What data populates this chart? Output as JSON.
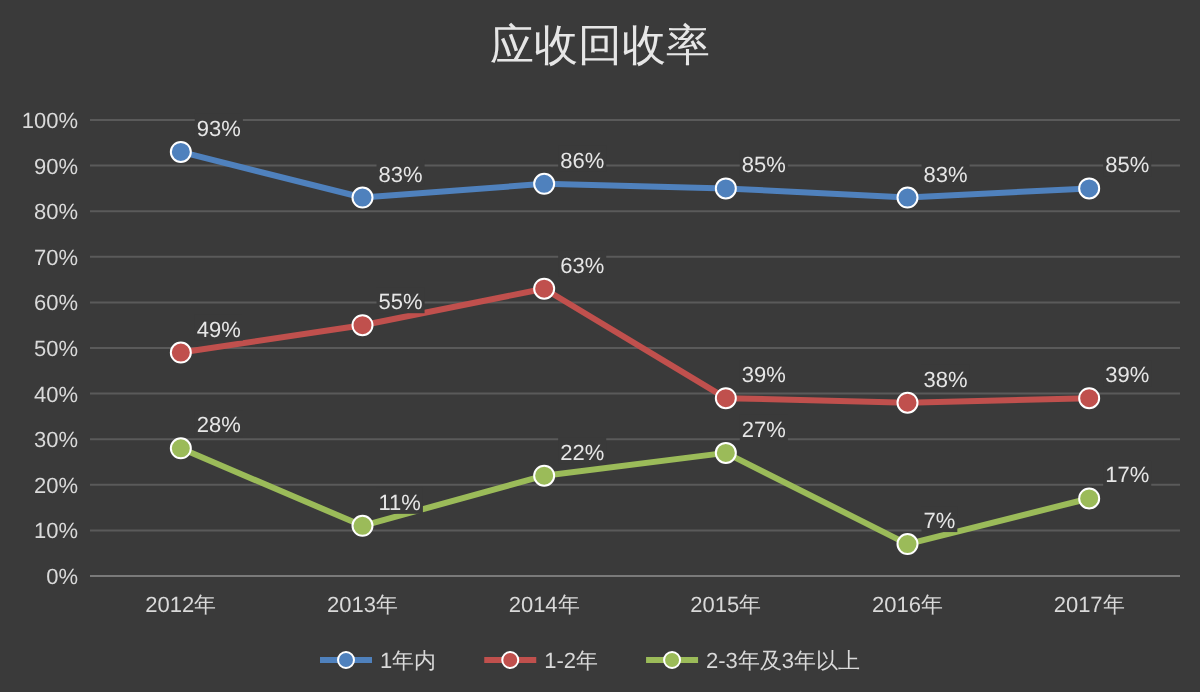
{
  "chart_data": {
    "type": "line",
    "title": "应收回收率",
    "categories": [
      "2012年",
      "2013年",
      "2014年",
      "2015年",
      "2016年",
      "2017年"
    ],
    "series": [
      {
        "name": "1年内",
        "color": "#4f81bd",
        "values": [
          93,
          83,
          86,
          85,
          83,
          85
        ],
        "value_labels": [
          "93%",
          "83%",
          "86%",
          "85%",
          "83%",
          "85%"
        ]
      },
      {
        "name": "1-2年",
        "color": "#c0504d",
        "values": [
          49,
          55,
          63,
          39,
          38,
          39
        ],
        "value_labels": [
          "49%",
          "55%",
          "63%",
          "39%",
          "38%",
          "39%"
        ]
      },
      {
        "name": "2-3年及3年以上",
        "color": "#9bbb59",
        "values": [
          28,
          11,
          22,
          27,
          7,
          17
        ],
        "value_labels": [
          "28%",
          "11%",
          "22%",
          "27%",
          "7%",
          "17%"
        ]
      }
    ],
    "ylim": [
      0,
      100
    ],
    "yticks": [
      {
        "value": 0,
        "label": "0%"
      },
      {
        "value": 10,
        "label": "10%"
      },
      {
        "value": 20,
        "label": "20%"
      },
      {
        "value": 30,
        "label": "30%"
      },
      {
        "value": 40,
        "label": "40%"
      },
      {
        "value": 50,
        "label": "50%"
      },
      {
        "value": 60,
        "label": "60%"
      },
      {
        "value": 70,
        "label": "70%"
      },
      {
        "value": 80,
        "label": "80%"
      },
      {
        "value": 90,
        "label": "90%"
      },
      {
        "value": 100,
        "label": "100%"
      }
    ],
    "grid": "y",
    "legend": "bottom",
    "marker": "circle",
    "line_style": "solid"
  }
}
